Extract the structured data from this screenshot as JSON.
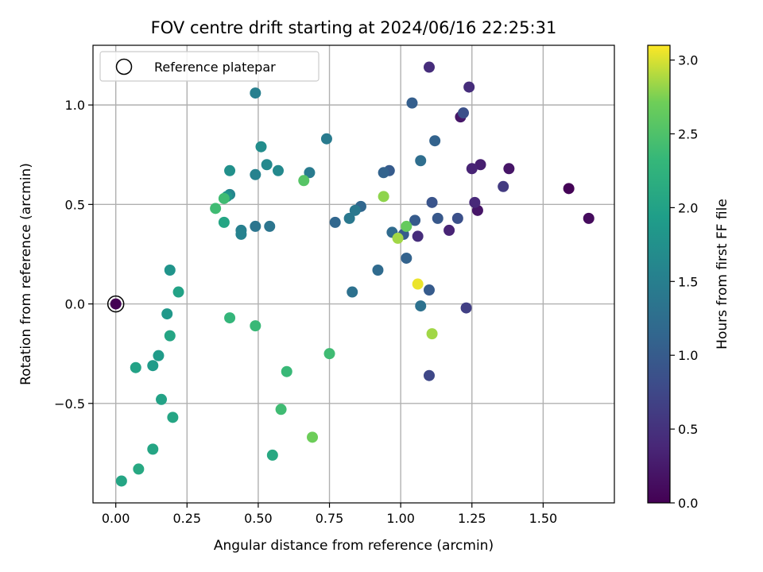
{
  "chart_data": {
    "type": "scatter",
    "title": "FOV centre drift starting at 2024/06/16 22:25:31",
    "xlabel": "Angular distance from reference (arcmin)",
    "ylabel": "Rotation from reference (arcmin)",
    "xlim": [
      -0.08,
      1.75
    ],
    "ylim": [
      -1.0,
      1.3
    ],
    "xticks": [
      0.0,
      0.25,
      0.5,
      0.75,
      1.0,
      1.25,
      1.5
    ],
    "xtick_labels": [
      "0.00",
      "0.25",
      "0.50",
      "0.75",
      "1.00",
      "1.25",
      "1.50"
    ],
    "yticks": [
      -0.5,
      0.0,
      0.5,
      1.0
    ],
    "ytick_labels": [
      "−0.5",
      "0.0",
      "0.5",
      "1.0"
    ],
    "grid": true,
    "legend": {
      "location": "upper-left",
      "entries": [
        {
          "label": "Reference platepar",
          "marker": "open-circle"
        }
      ]
    },
    "colorbar": {
      "label": "Hours from first FF file",
      "colormap": "viridis",
      "range": [
        0.0,
        3.1
      ],
      "ticks": [
        0.0,
        0.5,
        1.0,
        1.5,
        2.0,
        2.5,
        3.0
      ],
      "tick_labels": [
        "0.0",
        "0.5",
        "1.0",
        "1.5",
        "2.0",
        "2.5",
        "3.0"
      ]
    },
    "reference_point": {
      "x": 0.0,
      "y": 0.0
    },
    "points": [
      {
        "x": 0.0,
        "y": 0.0,
        "c": 0.0
      },
      {
        "x": 1.59,
        "y": 0.58,
        "c": 0.02
      },
      {
        "x": 1.66,
        "y": 0.43,
        "c": 0.1
      },
      {
        "x": 1.38,
        "y": 0.68,
        "c": 0.2
      },
      {
        "x": 1.27,
        "y": 0.47,
        "c": 0.2
      },
      {
        "x": 1.21,
        "y": 0.94,
        "c": 0.22
      },
      {
        "x": 1.28,
        "y": 0.7,
        "c": 0.3
      },
      {
        "x": 1.25,
        "y": 0.68,
        "c": 0.35
      },
      {
        "x": 1.17,
        "y": 0.37,
        "c": 0.35
      },
      {
        "x": 1.26,
        "y": 0.51,
        "c": 0.4
      },
      {
        "x": 1.1,
        "y": 1.19,
        "c": 0.45
      },
      {
        "x": 1.24,
        "y": 1.09,
        "c": 0.45
      },
      {
        "x": 1.06,
        "y": 0.34,
        "c": 0.45
      },
      {
        "x": 1.36,
        "y": 0.59,
        "c": 0.6
      },
      {
        "x": 1.23,
        "y": -0.02,
        "c": 0.65
      },
      {
        "x": 1.1,
        "y": -0.36,
        "c": 0.75
      },
      {
        "x": 1.2,
        "y": 0.43,
        "c": 0.85
      },
      {
        "x": 1.22,
        "y": 0.96,
        "c": 0.85
      },
      {
        "x": 1.11,
        "y": 0.51,
        "c": 0.9
      },
      {
        "x": 1.13,
        "y": 0.43,
        "c": 0.95
      },
      {
        "x": 1.05,
        "y": 0.42,
        "c": 1.0
      },
      {
        "x": 1.01,
        "y": 0.35,
        "c": 1.0
      },
      {
        "x": 0.96,
        "y": 0.67,
        "c": 1.0
      },
      {
        "x": 1.1,
        "y": 0.07,
        "c": 1.0
      },
      {
        "x": 1.04,
        "y": 1.01,
        "c": 1.05
      },
      {
        "x": 1.12,
        "y": 0.82,
        "c": 1.1
      },
      {
        "x": 0.94,
        "y": 0.66,
        "c": 1.1
      },
      {
        "x": 1.02,
        "y": 0.23,
        "c": 1.1
      },
      {
        "x": 0.77,
        "y": 0.41,
        "c": 1.15
      },
      {
        "x": 0.86,
        "y": 0.49,
        "c": 1.15
      },
      {
        "x": 0.97,
        "y": 0.36,
        "c": 1.2
      },
      {
        "x": 0.92,
        "y": 0.17,
        "c": 1.2
      },
      {
        "x": 1.07,
        "y": 0.72,
        "c": 1.25
      },
      {
        "x": 0.83,
        "y": 0.06,
        "c": 1.3
      },
      {
        "x": 1.07,
        "y": -0.01,
        "c": 1.3
      },
      {
        "x": 0.54,
        "y": 0.39,
        "c": 1.35
      },
      {
        "x": 0.49,
        "y": 0.39,
        "c": 1.35
      },
      {
        "x": 0.84,
        "y": 0.47,
        "c": 1.4
      },
      {
        "x": 0.82,
        "y": 0.43,
        "c": 1.4
      },
      {
        "x": 0.68,
        "y": 0.66,
        "c": 1.45
      },
      {
        "x": 0.74,
        "y": 0.83,
        "c": 1.45
      },
      {
        "x": 0.44,
        "y": 0.37,
        "c": 1.5
      },
      {
        "x": 0.44,
        "y": 0.35,
        "c": 1.55
      },
      {
        "x": 0.49,
        "y": 1.06,
        "c": 1.5
      },
      {
        "x": 0.49,
        "y": 0.65,
        "c": 1.55
      },
      {
        "x": 0.53,
        "y": 0.7,
        "c": 1.65
      },
      {
        "x": 0.57,
        "y": 0.67,
        "c": 1.65
      },
      {
        "x": 0.4,
        "y": 0.55,
        "c": 1.6
      },
      {
        "x": 0.51,
        "y": 0.79,
        "c": 1.7
      },
      {
        "x": 0.4,
        "y": 0.67,
        "c": 1.75
      },
      {
        "x": 0.39,
        "y": 0.54,
        "c": 1.8
      },
      {
        "x": 0.19,
        "y": 0.17,
        "c": 1.8
      },
      {
        "x": 0.18,
        "y": -0.05,
        "c": 1.85
      },
      {
        "x": 0.15,
        "y": -0.26,
        "c": 1.9
      },
      {
        "x": 0.13,
        "y": -0.31,
        "c": 1.9
      },
      {
        "x": 0.22,
        "y": 0.06,
        "c": 2.0
      },
      {
        "x": 0.07,
        "y": -0.32,
        "c": 2.0
      },
      {
        "x": 0.16,
        "y": -0.48,
        "c": 2.0
      },
      {
        "x": 0.2,
        "y": -0.57,
        "c": 2.05
      },
      {
        "x": 0.19,
        "y": -0.16,
        "c": 2.05
      },
      {
        "x": 0.13,
        "y": -0.73,
        "c": 2.05
      },
      {
        "x": 0.08,
        "y": -0.83,
        "c": 2.1
      },
      {
        "x": 0.02,
        "y": -0.89,
        "c": 2.05
      },
      {
        "x": 0.38,
        "y": 0.41,
        "c": 2.05
      },
      {
        "x": 0.55,
        "y": -0.76,
        "c": 2.1
      },
      {
        "x": 0.4,
        "y": -0.07,
        "c": 2.3
      },
      {
        "x": 0.49,
        "y": -0.11,
        "c": 2.35
      },
      {
        "x": 0.38,
        "y": 0.53,
        "c": 2.4
      },
      {
        "x": 0.35,
        "y": 0.48,
        "c": 2.4
      },
      {
        "x": 0.6,
        "y": -0.34,
        "c": 2.35
      },
      {
        "x": 0.75,
        "y": -0.25,
        "c": 2.4
      },
      {
        "x": 0.58,
        "y": -0.53,
        "c": 2.4
      },
      {
        "x": 0.66,
        "y": 0.62,
        "c": 2.55
      },
      {
        "x": 0.69,
        "y": -0.67,
        "c": 2.7
      },
      {
        "x": 1.02,
        "y": 0.39,
        "c": 2.65
      },
      {
        "x": 0.94,
        "y": 0.54,
        "c": 2.8
      },
      {
        "x": 0.99,
        "y": 0.33,
        "c": 2.85
      },
      {
        "x": 1.11,
        "y": -0.15,
        "c": 2.85
      },
      {
        "x": 1.06,
        "y": 0.1,
        "c": 3.05
      }
    ]
  }
}
